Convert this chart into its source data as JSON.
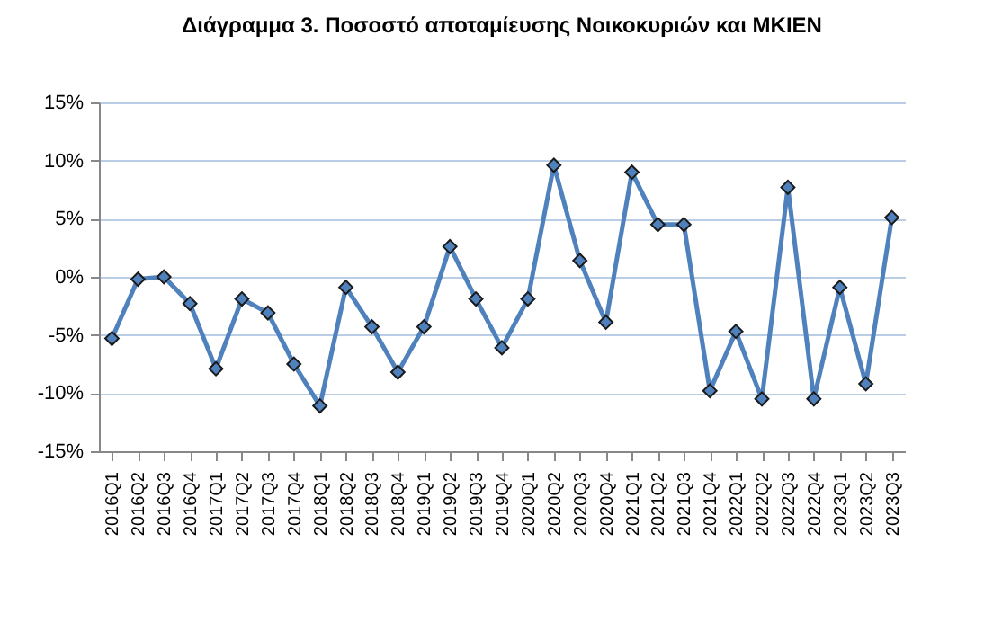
{
  "chart_data": {
    "type": "line",
    "title": "Διάγραμμα 3. Ποσοστό αποταμίευσης Νοικοκυριών και ΜΚΙΕΝ",
    "categories": [
      "2016Q1",
      "2016Q2",
      "2016Q3",
      "2016Q4",
      "2017Q1",
      "2017Q2",
      "2017Q3",
      "2017Q4",
      "2018Q1",
      "2018Q2",
      "2018Q3",
      "2018Q4",
      "2019Q1",
      "2019Q2",
      "2019Q3",
      "2019Q4",
      "2020Q1",
      "2020Q2",
      "2020Q3",
      "2020Q4",
      "2021Q1",
      "2021Q2",
      "2021Q3",
      "2021Q4",
      "2022Q1",
      "2022Q2",
      "2022Q3",
      "2022Q4",
      "2023Q1",
      "2023Q2",
      "2023Q3"
    ],
    "series": [
      {
        "color": "#4f81bd",
        "values": [
          -5.3,
          -0.2,
          0,
          -2.3,
          -7.9,
          -1.9,
          -3.1,
          -7.5,
          -11.1,
          -0.9,
          -4.3,
          -8.2,
          -4.3,
          2.6,
          -1.9,
          -6.1,
          -1.9,
          9.6,
          1.4,
          -3.9,
          9.0,
          4.5,
          4.5,
          -9.8,
          -4.7,
          -10.5,
          7.7,
          -10.5,
          -0.9,
          -9.2,
          5.1
        ]
      }
    ],
    "ylim": [
      -15,
      15
    ],
    "yticks": [
      {
        "value": -15,
        "label": "-15%"
      },
      {
        "value": -10,
        "label": "-10%"
      },
      {
        "value": -5,
        "label": "-5%"
      },
      {
        "value": 0,
        "label": "0%"
      },
      {
        "value": 5,
        "label": "5%"
      },
      {
        "value": 10,
        "label": "10%"
      },
      {
        "value": 15,
        "label": "15%"
      }
    ],
    "grid": "y",
    "marker": "diamond",
    "line_style": "solid"
  }
}
